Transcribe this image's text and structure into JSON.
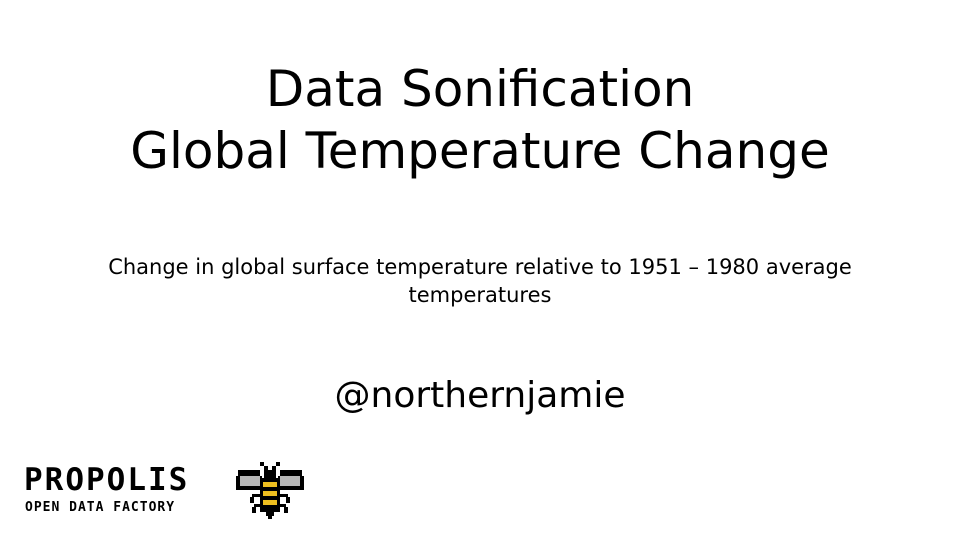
{
  "slide": {
    "title_lines": [
      "Data Sonification",
      "Global Temperature Change"
    ],
    "subtitle": "Change in global surface temperature relative to 1951 – 1980 average temperatures",
    "handle": "@northernjamie"
  },
  "logo": {
    "wordmark": "PROPOLIS",
    "tagline": "OPEN DATA FACTORY",
    "icon": "bee-icon",
    "colors": {
      "bee_body": "#000000",
      "bee_stripe": "#f0c020",
      "bee_wing": "#b8b8b8"
    }
  }
}
